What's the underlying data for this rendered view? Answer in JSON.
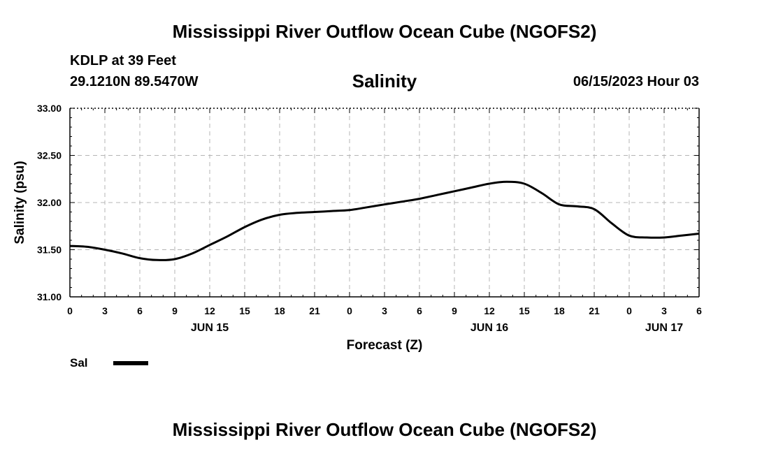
{
  "header": {
    "title": "Mississippi River Outflow Ocean Cube (NGOFS2)",
    "station": "KDLP at 39 Feet",
    "coords": "29.1210N  89.5470W",
    "variable": "Salinity",
    "datetime": "06/15/2023 Hour 03"
  },
  "footer": {
    "title": "Mississippi River Outflow Ocean Cube (NGOFS2)"
  },
  "legend": {
    "label": "Sal",
    "color": "#000000"
  },
  "chart_data": {
    "type": "line",
    "title": "Salinity",
    "xlabel": "Forecast (Z)",
    "ylabel": "Salinity (psu)",
    "xlim": [
      0,
      54
    ],
    "ylim": [
      31.0,
      33.0
    ],
    "grid": true,
    "x_ticks": [
      {
        "x": 0,
        "label": "0"
      },
      {
        "x": 3,
        "label": "3"
      },
      {
        "x": 6,
        "label": "6"
      },
      {
        "x": 9,
        "label": "9"
      },
      {
        "x": 12,
        "label": "12"
      },
      {
        "x": 15,
        "label": "15"
      },
      {
        "x": 18,
        "label": "18"
      },
      {
        "x": 21,
        "label": "21"
      },
      {
        "x": 24,
        "label": "0"
      },
      {
        "x": 27,
        "label": "3"
      },
      {
        "x": 30,
        "label": "6"
      },
      {
        "x": 33,
        "label": "9"
      },
      {
        "x": 36,
        "label": "12"
      },
      {
        "x": 39,
        "label": "15"
      },
      {
        "x": 42,
        "label": "18"
      },
      {
        "x": 45,
        "label": "21"
      },
      {
        "x": 48,
        "label": "0"
      },
      {
        "x": 51,
        "label": "3"
      },
      {
        "x": 54,
        "label": "6"
      }
    ],
    "day_labels": [
      {
        "x": 12,
        "label": "JUN 15"
      },
      {
        "x": 36,
        "label": "JUN 16"
      },
      {
        "x": 51,
        "label": "JUN 17"
      }
    ],
    "y_ticks": [
      {
        "y": 31.0,
        "label": "31.00"
      },
      {
        "y": 31.5,
        "label": "31.50"
      },
      {
        "y": 32.0,
        "label": "32.00"
      },
      {
        "y": 32.5,
        "label": "32.50"
      },
      {
        "y": 33.0,
        "label": "33.00"
      }
    ],
    "series": [
      {
        "name": "Sal",
        "x": [
          0,
          1.5,
          3,
          4.5,
          6,
          7.5,
          9,
          10.5,
          12,
          13.5,
          15,
          16.5,
          18,
          19.5,
          21,
          22.5,
          24,
          25.5,
          27,
          28.5,
          30,
          31.5,
          33,
          34.5,
          36,
          37.5,
          39,
          40.5,
          42,
          43.5,
          45,
          46.5,
          48,
          49.5,
          51,
          52.5,
          54
        ],
        "values": [
          31.54,
          31.53,
          31.5,
          31.46,
          31.41,
          31.39,
          31.4,
          31.46,
          31.55,
          31.64,
          31.74,
          31.82,
          31.87,
          31.89,
          31.9,
          31.91,
          31.92,
          31.95,
          31.98,
          32.01,
          32.04,
          32.08,
          32.12,
          32.16,
          32.2,
          32.22,
          32.2,
          32.1,
          31.98,
          31.96,
          31.93,
          31.78,
          31.65,
          31.63,
          31.63,
          31.65,
          31.67
        ]
      }
    ]
  }
}
